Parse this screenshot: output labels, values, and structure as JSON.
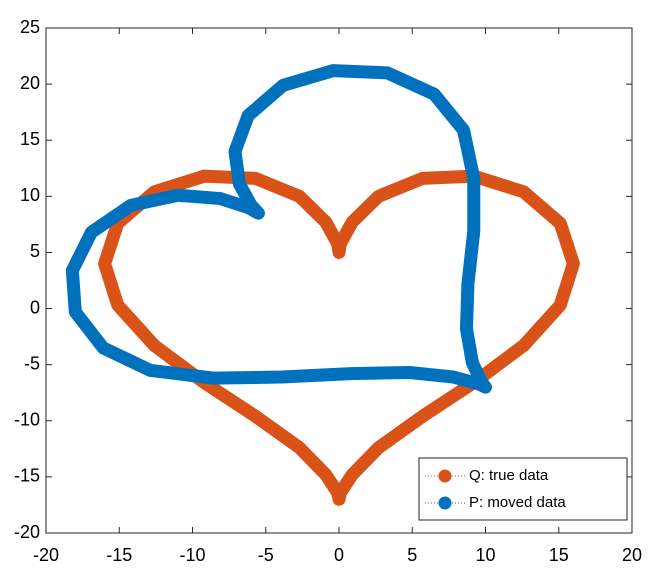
{
  "chart_data": {
    "type": "line",
    "xlim": [
      -20,
      20
    ],
    "xticks": [
      -20,
      -15,
      -10,
      -5,
      0,
      5,
      10,
      15,
      20
    ],
    "ylim": [
      -20,
      25
    ],
    "yticks": [
      -20,
      -15,
      -10,
      -5,
      0,
      5,
      10,
      15,
      20,
      25
    ],
    "grid": false,
    "legend": "lower-right",
    "series": [
      {
        "name": "Q: true data",
        "color": "#d95319",
        "x": [
          0,
          0.1,
          0.9,
          2.7,
          5.7,
          9.2,
          12.6,
          15.1,
          16,
          15.1,
          12.6,
          9.2,
          5.7,
          2.7,
          0.9,
          0.1,
          0,
          -0.1,
          -0.9,
          -2.7,
          -5.7,
          -9.2,
          -12.6,
          -15.1,
          -16,
          -15.1,
          -12.6,
          -9.2,
          -5.7,
          -2.7,
          -0.9,
          -0.1,
          0
        ],
        "values": [
          5,
          5.8,
          7.7,
          10,
          11.6,
          11.8,
          10.4,
          7.6,
          4,
          0.3,
          -3.3,
          -6.6,
          -9.6,
          -12.4,
          -14.8,
          -16.4,
          -17,
          -16.4,
          -14.8,
          -12.4,
          -9.6,
          -6.6,
          -3.3,
          0.3,
          4,
          7.6,
          10.4,
          11.8,
          11.6,
          10,
          7.7,
          5.8,
          5
        ]
      },
      {
        "name": "P: moved data",
        "color": "#0072bd",
        "x": [
          -5.5,
          -6,
          -6.8,
          -7.1,
          -6.2,
          -3.8,
          -0.4,
          3.3,
          6.5,
          8.5,
          9.2,
          9.2,
          8.8,
          8.7,
          9.1,
          9.7,
          10,
          9.5,
          7.8,
          4.8,
          0.8,
          -3.9,
          -8.6,
          -12.9,
          -16.1,
          -18,
          -18.2,
          -16.9,
          -14.2,
          -11,
          -8.1,
          -6.2,
          -5.5
        ],
        "values": [
          8.5,
          9.2,
          11.1,
          14,
          17.2,
          19.9,
          21.2,
          21,
          19.1,
          15.9,
          11.6,
          6.9,
          2.2,
          -1.8,
          -4.8,
          -6.5,
          -7,
          -6.7,
          -6.1,
          -5.7,
          -5.8,
          -6.1,
          -6.2,
          -5.5,
          -3.5,
          -0.3,
          3.4,
          6.8,
          9.2,
          10.1,
          9.8,
          9,
          8.5
        ]
      }
    ]
  }
}
